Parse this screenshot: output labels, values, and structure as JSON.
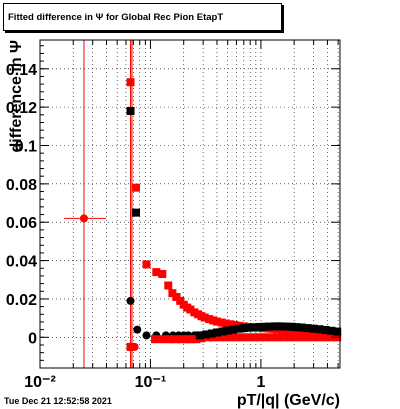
{
  "title": "Fitted difference in  Ψ  for Global Rec Pion EtapT",
  "timestamp": "Tue Dec 21 12:52:58 2021",
  "colors": {
    "red": "#ff0000",
    "black": "#000000",
    "frame": "#000000"
  },
  "chart_data": {
    "type": "scatter",
    "title": "Fitted difference in  Ψ  for Global Rec Pion EtapT",
    "xlabel": "pT/|q| (GeV/c)",
    "ylabel": "difference in Ψ",
    "x_scale": "log",
    "xlim": [
      0.01,
      5.2
    ],
    "ylim": [
      -0.016,
      0.155
    ],
    "grid": true,
    "x_ticks": [
      {
        "value": 0.01,
        "label": "10⁻²"
      },
      {
        "value": 0.1,
        "label": "10⁻¹"
      },
      {
        "value": 1,
        "label": "1"
      }
    ],
    "y_ticks": [
      0,
      0.02,
      0.04,
      0.06,
      0.08,
      0.1,
      0.12,
      0.14
    ],
    "y_tick_labels": [
      "0",
      "0.02",
      "0.04",
      "0.06",
      "0.08",
      "0.1",
      "0.12",
      "0.14"
    ],
    "vertical_lines": [
      {
        "x": 0.025,
        "color": "#ff0000"
      },
      {
        "x": 0.066,
        "color": "#ff0000"
      },
      {
        "x": 0.068,
        "color": "#ff0000"
      }
    ],
    "series": [
      {
        "marker": "circle",
        "color": "#ff0000",
        "points": [
          [
            0.025,
            0.062,
            0.0165,
            0.0395
          ]
        ]
      },
      {
        "marker": "circle",
        "color": "#000000",
        "points": [
          [
            0.066,
            0.019
          ],
          [
            0.076,
            0.004
          ],
          [
            0.092,
            0.001
          ],
          [
            0.113,
            0.001
          ],
          [
            0.138,
            0.001
          ],
          [
            0.16,
            0.001
          ],
          [
            0.18,
            0.001
          ],
          [
            0.2,
            0.001
          ],
          [
            0.22,
            0.001
          ],
          [
            0.25,
            0.001
          ]
        ]
      },
      {
        "marker": "square",
        "color": "#000000",
        "points": [
          [
            0.066,
            0.118
          ],
          [
            0.074,
            0.065
          ]
        ]
      },
      {
        "marker": "circle",
        "color": "#ff0000",
        "points": [
          [
            0.066,
            -0.005
          ],
          [
            0.072,
            -0.005
          ]
        ]
      },
      {
        "marker": "square",
        "color": "#ff0000",
        "points": [
          [
            0.066,
            0.133
          ],
          [
            0.074,
            0.078
          ],
          [
            0.092,
            0.038
          ],
          [
            0.113,
            0.034
          ],
          [
            0.128,
            0.033
          ],
          [
            0.145,
            0.027
          ],
          [
            0.158,
            0.023
          ],
          [
            0.172,
            0.021
          ],
          [
            0.186,
            0.019
          ],
          [
            0.2,
            0.017
          ],
          [
            0.215,
            0.0155
          ],
          [
            0.23,
            0.0145
          ],
          [
            0.25,
            0.013
          ],
          [
            0.27,
            0.012
          ],
          [
            0.29,
            0.011
          ],
          [
            0.31,
            0.0103
          ],
          [
            0.34,
            0.0095
          ],
          [
            0.37,
            0.0088
          ],
          [
            0.4,
            0.0082
          ],
          [
            0.44,
            0.0077
          ],
          [
            0.48,
            0.0072
          ],
          [
            0.53,
            0.0068
          ],
          [
            0.58,
            0.0064
          ],
          [
            0.64,
            0.006
          ],
          [
            0.7,
            0.0057
          ],
          [
            0.77,
            0.0054
          ],
          [
            0.85,
            0.0052
          ],
          [
            0.94,
            0.005
          ],
          [
            1.04,
            0.0048
          ],
          [
            1.15,
            0.0046
          ],
          [
            1.28,
            0.0044
          ],
          [
            1.42,
            0.0042
          ],
          [
            1.58,
            0.004
          ],
          [
            1.76,
            0.0038
          ],
          [
            1.96,
            0.0036
          ],
          [
            2.2,
            0.0034
          ],
          [
            2.45,
            0.0032
          ],
          [
            2.75,
            0.003
          ],
          [
            3.1,
            0.0028
          ],
          [
            3.5,
            0.0026
          ],
          [
            3.9,
            0.0024
          ],
          [
            4.4,
            0.0022
          ],
          [
            4.9,
            0.0021
          ]
        ]
      },
      {
        "marker": "square",
        "color": "#ff0000",
        "points": [
          [
            0.066,
            -0.005
          ],
          [
            0.11,
            -0.001
          ],
          [
            0.13,
            -0.001
          ],
          [
            0.15,
            -0.001
          ],
          [
            0.17,
            -0.001
          ],
          [
            0.19,
            -0.001
          ],
          [
            0.21,
            -0.001
          ],
          [
            0.23,
            -0.001
          ],
          [
            0.26,
            -0.001
          ],
          [
            0.29,
            -0.0005
          ],
          [
            0.33,
            0
          ],
          [
            0.37,
            0
          ],
          [
            0.42,
            0
          ],
          [
            0.47,
            0
          ],
          [
            0.53,
            0
          ],
          [
            0.6,
            0
          ],
          [
            0.68,
            0
          ],
          [
            0.77,
            0
          ],
          [
            0.87,
            0
          ],
          [
            0.98,
            0
          ],
          [
            1.1,
            0
          ],
          [
            1.25,
            0
          ],
          [
            1.4,
            0
          ],
          [
            1.6,
            0
          ],
          [
            1.8,
            0
          ],
          [
            2.05,
            0
          ],
          [
            2.3,
            0
          ],
          [
            2.6,
            0
          ],
          [
            2.95,
            0
          ],
          [
            3.35,
            0
          ],
          [
            3.8,
            0
          ],
          [
            4.3,
            0
          ],
          [
            4.9,
            0
          ]
        ]
      },
      {
        "marker": "square",
        "color": "#000000",
        "points": [
          [
            0.28,
            0.001
          ],
          [
            0.32,
            0.0015
          ],
          [
            0.36,
            0.002
          ],
          [
            0.4,
            0.0025
          ],
          [
            0.45,
            0.003
          ],
          [
            0.5,
            0.0035
          ],
          [
            0.56,
            0.004
          ],
          [
            0.63,
            0.0045
          ],
          [
            0.7,
            0.0048
          ],
          [
            0.78,
            0.005
          ],
          [
            0.87,
            0.0052
          ],
          [
            0.97,
            0.0054
          ],
          [
            1.08,
            0.0055
          ],
          [
            1.2,
            0.0056
          ],
          [
            1.35,
            0.0057
          ],
          [
            1.5,
            0.0057
          ],
          [
            1.7,
            0.0056
          ],
          [
            1.9,
            0.0055
          ],
          [
            2.1,
            0.0053
          ],
          [
            2.35,
            0.0051
          ],
          [
            2.65,
            0.0048
          ],
          [
            3.0,
            0.0045
          ],
          [
            3.4,
            0.0042
          ],
          [
            3.85,
            0.0038
          ],
          [
            4.35,
            0.0034
          ],
          [
            4.9,
            0.003
          ]
        ]
      }
    ]
  }
}
